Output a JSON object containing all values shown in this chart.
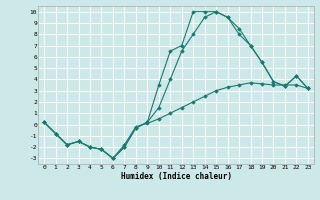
{
  "xlabel": "Humidex (Indice chaleur)",
  "background_color": "#cde8e8",
  "grid_color": "#ffffff",
  "line_color": "#1a7a6e",
  "xlim": [
    -0.5,
    23.5
  ],
  "ylim": [
    -3.5,
    10.5
  ],
  "xticks": [
    0,
    1,
    2,
    3,
    4,
    5,
    6,
    7,
    8,
    9,
    10,
    11,
    12,
    13,
    14,
    15,
    16,
    17,
    18,
    19,
    20,
    21,
    22,
    23
  ],
  "yticks": [
    -3,
    -2,
    -1,
    0,
    1,
    2,
    3,
    4,
    5,
    6,
    7,
    8,
    9,
    10
  ],
  "series": [
    {
      "x": [
        0,
        1,
        2,
        3,
        4,
        5,
        6,
        7,
        8,
        9,
        10,
        11,
        12,
        13,
        14,
        15,
        16,
        17,
        18,
        19,
        20,
        21,
        22,
        23
      ],
      "y": [
        0.2,
        -0.8,
        -1.8,
        -1.5,
        -2.0,
        -2.2,
        -3.0,
        -1.8,
        -0.2,
        0.1,
        0.5,
        1.0,
        1.5,
        2.0,
        2.5,
        3.0,
        3.3,
        3.5,
        3.7,
        3.6,
        3.5,
        3.5,
        3.5,
        3.2
      ]
    },
    {
      "x": [
        0,
        1,
        2,
        3,
        4,
        5,
        6,
        7,
        8,
        9,
        10,
        11,
        12,
        13,
        14,
        15,
        16,
        17,
        18,
        19,
        20,
        21,
        22,
        23
      ],
      "y": [
        0.2,
        -0.8,
        -1.8,
        -1.5,
        -2.0,
        -2.2,
        -3.0,
        -2.0,
        -0.3,
        0.2,
        1.5,
        4.0,
        6.5,
        8.0,
        9.5,
        10.0,
        9.5,
        8.5,
        7.0,
        5.5,
        3.8,
        3.4,
        4.3,
        3.2
      ]
    },
    {
      "x": [
        0,
        1,
        2,
        3,
        4,
        5,
        6,
        7,
        8,
        9,
        10,
        11,
        12,
        13,
        14,
        15,
        16,
        17,
        18,
        19,
        20,
        21,
        22,
        23
      ],
      "y": [
        0.2,
        -0.8,
        -1.8,
        -1.5,
        -2.0,
        -2.2,
        -3.0,
        -2.0,
        -0.3,
        0.2,
        3.5,
        6.5,
        7.0,
        10.0,
        10.0,
        10.0,
        9.5,
        8.0,
        7.0,
        5.5,
        3.8,
        3.4,
        4.3,
        3.2
      ]
    }
  ]
}
